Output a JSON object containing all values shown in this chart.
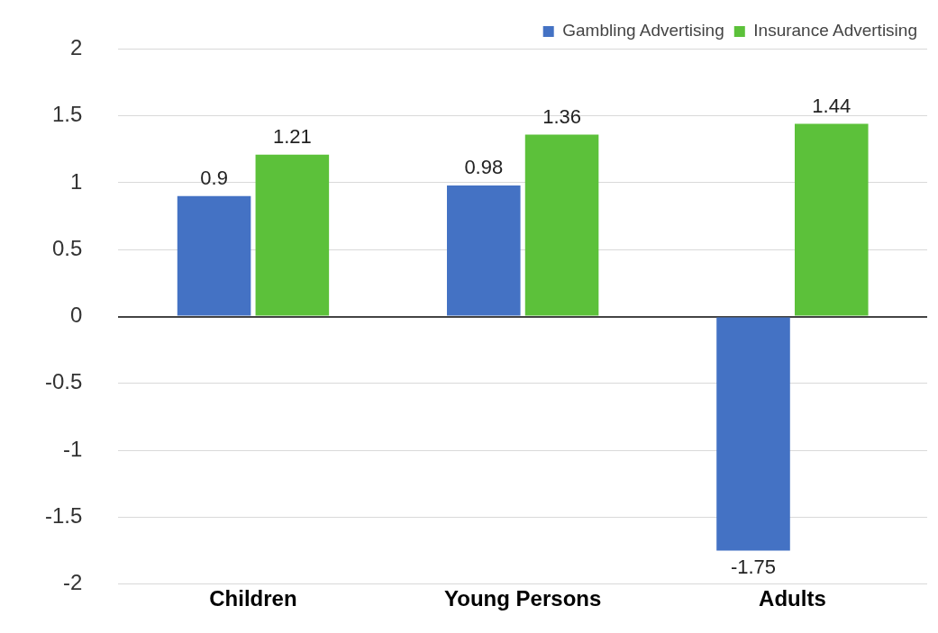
{
  "chart_data": {
    "type": "bar",
    "categories": [
      "Children",
      "Young Persons",
      "Adults"
    ],
    "series": [
      {
        "name": "Gambling Advertising",
        "color": "#4472c4",
        "values": [
          0.9,
          0.98,
          -1.75
        ]
      },
      {
        "name": "Insurance Advertising",
        "color": "#5cc13a",
        "values": [
          1.21,
          1.36,
          1.44
        ]
      }
    ],
    "ylim": [
      -2,
      2
    ],
    "yticks": [
      -2,
      -1.5,
      -1,
      -0.5,
      0,
      0.5,
      1,
      1.5,
      2
    ],
    "grid": "y",
    "legend": "top right",
    "data_labels": true
  }
}
